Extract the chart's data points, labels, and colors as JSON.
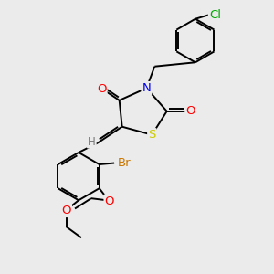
{
  "bg_color": "#ebebeb",
  "bond_color": "#000000",
  "atom_colors": {
    "N": "#0000ee",
    "S": "#cccc00",
    "O": "#ff0000",
    "Br": "#cc7700",
    "Cl": "#00aa00",
    "H": "#777777",
    "C": "#000000"
  },
  "lw": 1.4,
  "font_size": 8.5
}
